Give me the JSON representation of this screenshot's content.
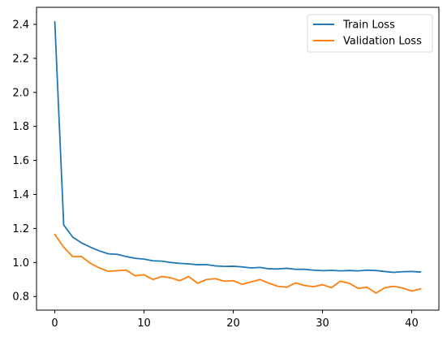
{
  "chart_data": {
    "type": "line",
    "title": "",
    "xlabel": "",
    "ylabel": "",
    "xlim": [
      -2.05,
      43.05
    ],
    "ylim": [
      0.72,
      2.5
    ],
    "xticks": [
      0,
      10,
      20,
      30,
      40
    ],
    "yticks": [
      0.8,
      1.0,
      1.2,
      1.4,
      1.6,
      1.8,
      2.0,
      2.2,
      2.4
    ],
    "xtick_labels": [
      "0",
      "10",
      "20",
      "30",
      "40"
    ],
    "ytick_labels": [
      "0.8",
      "1.0",
      "1.2",
      "1.4",
      "1.6",
      "1.8",
      "2.0",
      "2.2",
      "2.4"
    ],
    "grid": false,
    "legend_position": "top-right",
    "x": [
      0,
      1,
      2,
      3,
      4,
      5,
      6,
      7,
      8,
      9,
      10,
      11,
      12,
      13,
      14,
      15,
      16,
      17,
      18,
      19,
      20,
      21,
      22,
      23,
      24,
      25,
      26,
      27,
      28,
      29,
      30,
      31,
      32,
      33,
      34,
      35,
      36,
      37,
      38,
      39,
      40,
      41
    ],
    "series": [
      {
        "name": "Train Loss",
        "color": "#1f77b4",
        "values": [
          2.415,
          1.22,
          1.15,
          1.115,
          1.09,
          1.068,
          1.051,
          1.048,
          1.035,
          1.025,
          1.02,
          1.01,
          1.008,
          1.0,
          0.995,
          0.992,
          0.987,
          0.988,
          0.98,
          0.977,
          0.978,
          0.974,
          0.968,
          0.971,
          0.963,
          0.962,
          0.966,
          0.96,
          0.96,
          0.955,
          0.952,
          0.954,
          0.951,
          0.953,
          0.951,
          0.955,
          0.953,
          0.947,
          0.942,
          0.946,
          0.947,
          0.944
        ]
      },
      {
        "name": "Validation Loss",
        "color": "#ff7f0e",
        "values": [
          1.165,
          1.09,
          1.035,
          1.035,
          0.995,
          0.968,
          0.948,
          0.952,
          0.955,
          0.922,
          0.928,
          0.9,
          0.918,
          0.91,
          0.893,
          0.918,
          0.878,
          0.9,
          0.905,
          0.89,
          0.893,
          0.872,
          0.886,
          0.9,
          0.878,
          0.86,
          0.855,
          0.88,
          0.865,
          0.858,
          0.87,
          0.852,
          0.89,
          0.878,
          0.848,
          0.855,
          0.82,
          0.852,
          0.86,
          0.85,
          0.832,
          0.846
        ]
      }
    ]
  }
}
